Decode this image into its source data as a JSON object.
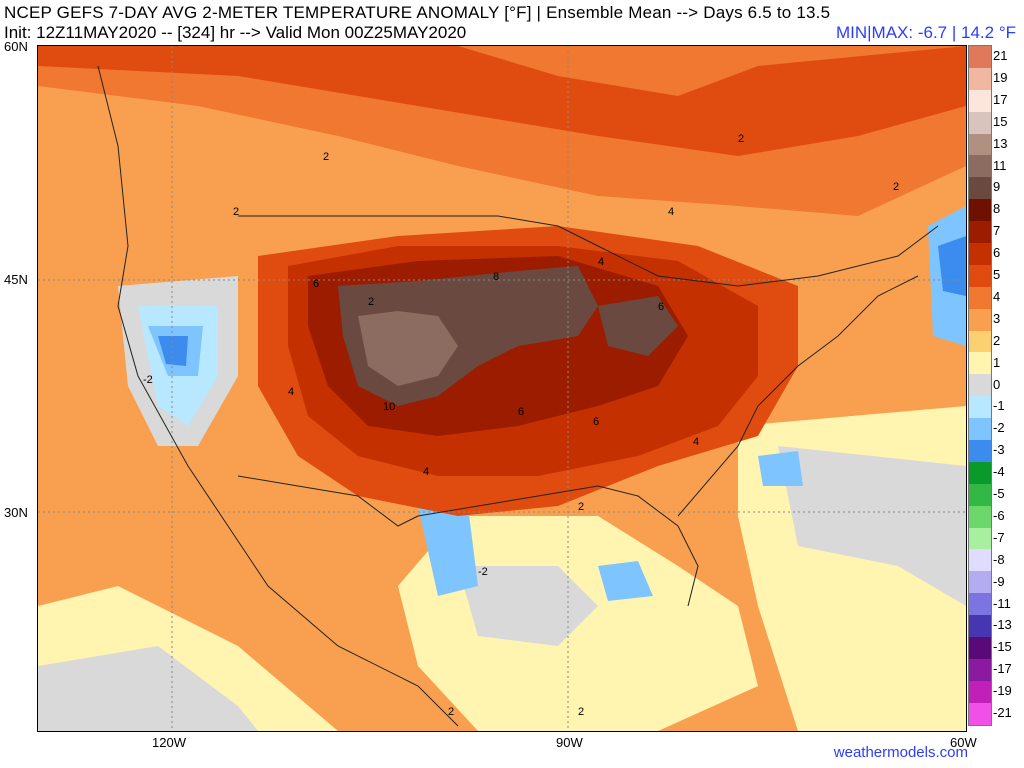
{
  "header": {
    "title": "NCEP GEFS 7-DAY AVG 2-METER TEMPERATURE ANOMALY [°F] | Ensemble Mean --> Days 6.5 to 13.5",
    "init_line": "Init: 12Z11MAY2020 -- [324] hr --> Valid Mon 00Z25MAY2020",
    "minmax": "MIN|MAX: -6.7 | 14.2 °F"
  },
  "axes": {
    "lat_labels": [
      "60N",
      "45N",
      "30N"
    ],
    "lon_labels": [
      "120W",
      "90W",
      "60W"
    ]
  },
  "contour_labels": [
    "2",
    "2",
    "2",
    "2",
    "2",
    "2",
    "2",
    "2",
    "4",
    "4",
    "4",
    "4",
    "4",
    "6",
    "6",
    "6",
    "6",
    "8",
    "10",
    "-2",
    "-2"
  ],
  "legend": {
    "labels": [
      "21",
      "19",
      "17",
      "15",
      "13",
      "11",
      "9",
      "8",
      "7",
      "6",
      "5",
      "4",
      "3",
      "2",
      "1",
      "0",
      "-1",
      "-2",
      "-3",
      "-4",
      "-5",
      "-6",
      "-7",
      "-8",
      "-9",
      "-11",
      "-13",
      "-15",
      "-17",
      "-19",
      "-21"
    ],
    "colors": [
      "#e0785a",
      "#f0b8a0",
      "#fce6dc",
      "#d8c4bc",
      "#b09080",
      "#8c6c60",
      "#6a4a40",
      "#701000",
      "#9c1c00",
      "#c43000",
      "#e04c10",
      "#f07830",
      "#f8a050",
      "#fcd070",
      "#fff4b0",
      "#d9d9d9",
      "#b8e8ff",
      "#7ec4ff",
      "#3c8cf0",
      "#0a9a2c",
      "#34b845",
      "#6cd86c",
      "#a8f0a0",
      "#e0dcff",
      "#b4acf0",
      "#7c74e0",
      "#4636b0",
      "#5a0a78",
      "#8c1aa0",
      "#c020b8",
      "#f050e8"
    ]
  },
  "credit": "weathermodels.com"
}
